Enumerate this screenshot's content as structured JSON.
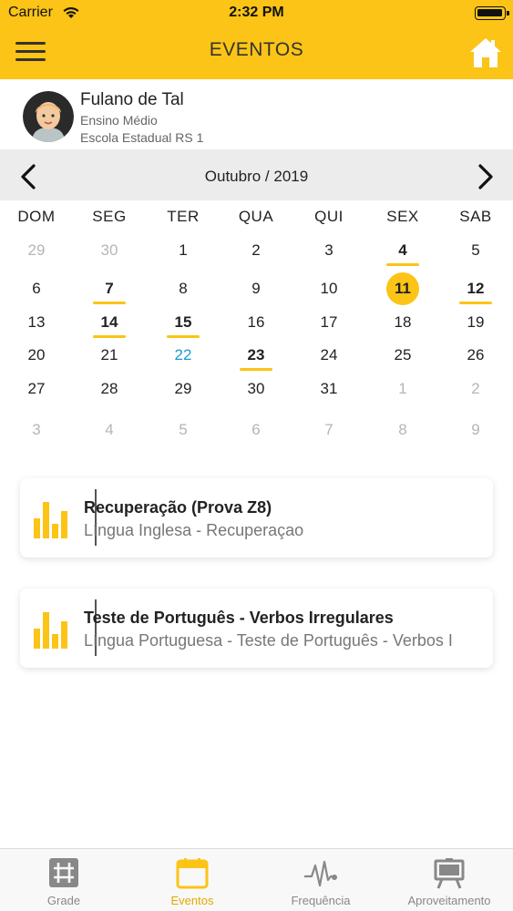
{
  "status_bar": {
    "carrier": "Carrier",
    "time": "2:32 PM"
  },
  "nav": {
    "title": "EVENTOS"
  },
  "profile": {
    "name": "Fulano de Tal",
    "level": "Ensino Médio",
    "school": "Escola Estadual RS 1"
  },
  "calendar": {
    "month_label": "Outubro / 2019",
    "weekdays": [
      "DOM",
      "SEG",
      "TER",
      "QUA",
      "QUI",
      "SEX",
      "SAB"
    ],
    "weeks": [
      [
        {
          "d": "29",
          "muted": true
        },
        {
          "d": "30",
          "muted": true
        },
        {
          "d": "1"
        },
        {
          "d": "2"
        },
        {
          "d": "3"
        },
        {
          "d": "4",
          "event": true
        },
        {
          "d": "5"
        }
      ],
      [
        {
          "d": "6"
        },
        {
          "d": "7",
          "event": true
        },
        {
          "d": "8"
        },
        {
          "d": "9"
        },
        {
          "d": "10"
        },
        {
          "d": "11",
          "selected": true
        },
        {
          "d": "12",
          "event": true
        }
      ],
      [
        {
          "d": "13"
        },
        {
          "d": "14",
          "event": true
        },
        {
          "d": "15",
          "event": true
        },
        {
          "d": "16"
        },
        {
          "d": "17"
        },
        {
          "d": "18"
        },
        {
          "d": "19"
        }
      ],
      [
        {
          "d": "20"
        },
        {
          "d": "21"
        },
        {
          "d": "22",
          "today": true
        },
        {
          "d": "23",
          "event": true
        },
        {
          "d": "24"
        },
        {
          "d": "25"
        },
        {
          "d": "26"
        }
      ],
      [
        {
          "d": "27"
        },
        {
          "d": "28"
        },
        {
          "d": "29"
        },
        {
          "d": "30"
        },
        {
          "d": "31"
        },
        {
          "d": "1",
          "muted": true
        },
        {
          "d": "2",
          "muted": true
        }
      ],
      [
        {
          "d": "3",
          "muted": true
        },
        {
          "d": "4",
          "muted": true
        },
        {
          "d": "5",
          "muted": true
        },
        {
          "d": "6",
          "muted": true
        },
        {
          "d": "7",
          "muted": true
        },
        {
          "d": "8",
          "muted": true
        },
        {
          "d": "9",
          "muted": true
        }
      ]
    ]
  },
  "events": [
    {
      "title": "Recuperação (Prova Z8)",
      "subtitle": "Língua Inglesa - Recuperaçao",
      "icon": "bar-chart-icon"
    },
    {
      "title": "Teste de Português - Verbos Irregulares",
      "subtitle": "Língua Portuguesa - Teste de Português - Verbos I",
      "icon": "bar-chart-icon"
    }
  ],
  "tabs": [
    {
      "label": "Grade",
      "icon": "grid-icon",
      "active": false
    },
    {
      "label": "Eventos",
      "icon": "calendar-icon",
      "active": true
    },
    {
      "label": "Frequência",
      "icon": "pulse-icon",
      "active": false
    },
    {
      "label": "Aproveitamento",
      "icon": "board-icon",
      "active": false
    }
  ],
  "colors": {
    "accent": "#FBC416",
    "today": "#1A9BCF",
    "muted": "#B5B5B5",
    "monthbar": "#ECECEC",
    "active_tab": "#E3A800"
  }
}
